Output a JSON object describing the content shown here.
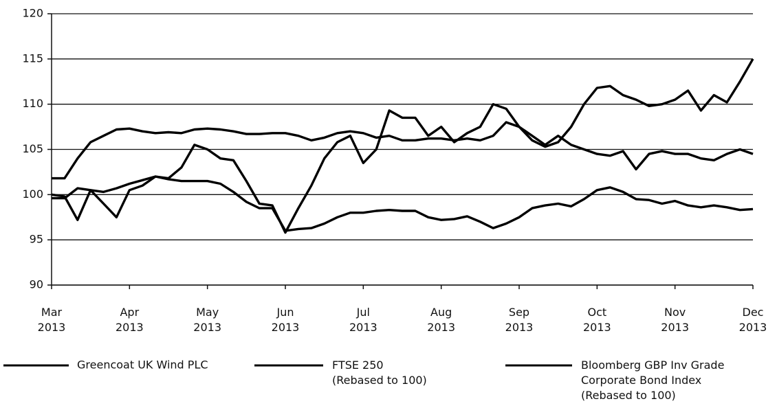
{
  "chart_data": {
    "type": "line",
    "x": [
      "Mar 2013",
      null,
      null,
      null,
      null,
      null,
      "Apr 2013",
      null,
      null,
      null,
      null,
      null,
      "May 2013",
      null,
      null,
      null,
      null,
      null,
      "Jun 2013",
      null,
      null,
      null,
      null,
      null,
      "Jul 2013",
      null,
      null,
      null,
      null,
      null,
      "Aug 2013",
      null,
      null,
      null,
      null,
      null,
      "Sep 2013",
      null,
      null,
      null,
      null,
      null,
      "Oct 2013",
      null,
      null,
      null,
      null,
      null,
      "Nov 2013",
      null,
      null,
      null,
      null,
      null,
      "Dec 2013"
    ],
    "series": [
      {
        "name": "Greencoat UK Wind PLC",
        "color": "#000000",
        "values": [
          101.8,
          101.8,
          104,
          105.8,
          106.5,
          107.2,
          107.3,
          107,
          106.8,
          106.9,
          106.8,
          107.2,
          107.3,
          107.2,
          107,
          106.7,
          106.7,
          106.8,
          106.8,
          106.5,
          106,
          106.3,
          106.8,
          107,
          106.8,
          106.3,
          106.5,
          106,
          106,
          106.2,
          106.2,
          106,
          106.2,
          106,
          106.5,
          108,
          107.5,
          106.5,
          105.5,
          106.5,
          105.5,
          105,
          104.5,
          104.3,
          104.8,
          102.8,
          104.5,
          104.8,
          104.5,
          104.5,
          104,
          103.8,
          104.5,
          105,
          104.5
        ]
      },
      {
        "name": "FTSE 250\n(Rebased to 100)",
        "color": "#000000",
        "values": [
          100,
          99.8,
          97.2,
          100.5,
          99,
          97.5,
          100.5,
          101,
          102,
          101.8,
          103,
          105.5,
          105,
          104,
          103.8,
          101.5,
          99,
          98.8,
          95.8,
          98.5,
          101,
          104,
          105.8,
          106.5,
          103.5,
          105,
          109.3,
          108.5,
          108.5,
          106.5,
          107.5,
          105.8,
          106.8,
          107.5,
          110,
          109.5,
          107.5,
          106,
          105.3,
          105.8,
          107.5,
          110,
          111.8,
          112,
          111,
          110.5,
          109.8,
          110,
          110.5,
          111.5,
          109.3,
          111,
          110.2,
          112.5,
          115
        ]
      },
      {
        "name": "Bloomberg GBP Inv Grade\nCorporate Bond Index\n(Rebased to 100)",
        "color": "#000000",
        "values": [
          99.6,
          99.6,
          100.7,
          100.5,
          100.3,
          100.7,
          101.2,
          101.6,
          102,
          101.7,
          101.5,
          101.5,
          101.5,
          101.2,
          100.3,
          99.2,
          98.5,
          98.5,
          96,
          96.2,
          96.3,
          96.8,
          97.5,
          98,
          98,
          98.2,
          98.3,
          98.2,
          98.2,
          97.5,
          97.2,
          97.3,
          97.6,
          97,
          96.3,
          96.8,
          97.5,
          98.5,
          98.8,
          99,
          98.7,
          99.5,
          100.5,
          100.8,
          100.3,
          99.5,
          99.4,
          99,
          99.3,
          98.8,
          98.6,
          98.8,
          98.6,
          98.3,
          98.4
        ]
      }
    ],
    "ylim": [
      90,
      120
    ],
    "yticks": [
      90,
      95,
      100,
      105,
      110,
      115,
      120
    ],
    "grid": true
  }
}
